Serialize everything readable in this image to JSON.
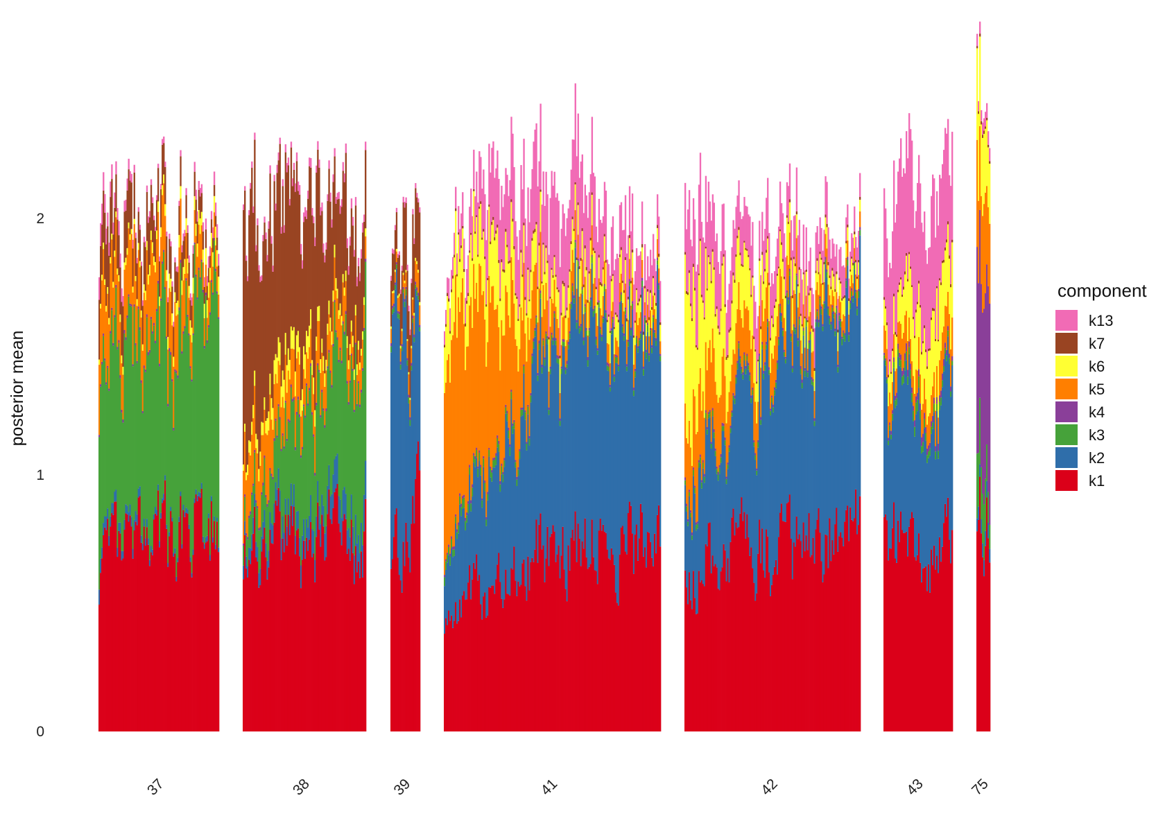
{
  "chart_data": {
    "type": "bar",
    "stacked": true,
    "xlabel": "",
    "ylabel": "posterior mean",
    "ylim": [
      0,
      2.85
    ],
    "yticks": [
      0,
      1,
      2
    ],
    "grid": false,
    "legend_title": "component",
    "legend_position": "right",
    "stack_order": [
      "k1",
      "k2",
      "k3",
      "k4",
      "k5",
      "k6",
      "k7",
      "k13"
    ],
    "legend_entries": [
      {
        "key": "k13",
        "label": "k13",
        "color": "#F16BB5"
      },
      {
        "key": "k7",
        "label": "k7",
        "color": "#994422"
      },
      {
        "key": "k6",
        "label": "k6",
        "color": "#FFFF33"
      },
      {
        "key": "k5",
        "label": "k5",
        "color": "#FF7F00"
      },
      {
        "key": "k4",
        "label": "k4",
        "color": "#8A3F99"
      },
      {
        "key": "k3",
        "label": "k3",
        "color": "#46A23A"
      },
      {
        "key": "k2",
        "label": "k2",
        "color": "#2F6EAA"
      },
      {
        "key": "k1",
        "label": "k1",
        "color": "#DB0019"
      }
    ],
    "groups": [
      {
        "label": "37",
        "bars": 86,
        "profile": {
          "k1": [
            0.62,
            0.72,
            0.78,
            0.83
          ],
          "k2": [
            0.05,
            0.03,
            0.02,
            0.02
          ],
          "k3": [
            0.65,
            0.72,
            0.75,
            0.9
          ],
          "k4": [
            0.01,
            0.01,
            0.01,
            0.01
          ],
          "k5": [
            0.25,
            0.25,
            0.2,
            0.08
          ],
          "k6": [
            0.02,
            0.03,
            0.05,
            0.06
          ],
          "k7": [
            0.25,
            0.17,
            0.1,
            0.04
          ],
          "k13": [
            0.08,
            0.02,
            0.02,
            0.05
          ]
        }
      },
      {
        "label": "38",
        "bars": 88,
        "profile": {
          "k1": [
            0.72,
            0.74,
            0.74,
            0.74
          ],
          "k2": [
            0.05,
            0.08,
            0.1,
            0.12
          ],
          "k3": [
            0.08,
            0.3,
            0.5,
            0.7
          ],
          "k4": [
            0.01,
            0.01,
            0.01,
            0.01
          ],
          "k5": [
            0.25,
            0.2,
            0.15,
            0.1
          ],
          "k6": [
            0.03,
            0.1,
            0.05,
            0.03
          ],
          "k7": [
            0.85,
            0.65,
            0.45,
            0.3
          ],
          "k13": [
            0.02,
            0.03,
            0.03,
            0.03
          ]
        }
      },
      {
        "label": "39",
        "bars": 22,
        "profile": {
          "k1": [
            0.72,
            0.78,
            0.85
          ],
          "k2": [
            1.0,
            0.8,
            0.55
          ],
          "k3": [
            0.02,
            0.02,
            0.02
          ],
          "k4": [
            0.01,
            0.01,
            0.01
          ],
          "k5": [
            0.05,
            0.06,
            0.08
          ],
          "k6": [
            0.01,
            0.01,
            0.01
          ],
          "k7": [
            0.15,
            0.25,
            0.35
          ],
          "k13": [
            0.02,
            0.02,
            0.02
          ]
        }
      },
      {
        "label": "41",
        "bars": 156,
        "profile": {
          "k1": [
            0.4,
            0.62,
            0.72,
            0.72,
            0.75
          ],
          "k2": [
            0.2,
            0.5,
            0.8,
            0.8,
            0.82
          ],
          "k3": [
            0.03,
            0.03,
            0.02,
            0.02,
            0.02
          ],
          "k4": [
            0.01,
            0.01,
            0.01,
            0.01,
            0.01
          ],
          "k5": [
            0.85,
            0.55,
            0.12,
            0.08,
            0.06
          ],
          "k6": [
            0.2,
            0.25,
            0.12,
            0.1,
            0.06
          ],
          "k7": [
            0.01,
            0.01,
            0.01,
            0.01,
            0.01
          ],
          "k13": [
            0.05,
            0.25,
            0.35,
            0.25,
            0.15
          ]
        }
      },
      {
        "label": "42",
        "bars": 128,
        "profile": {
          "k1": [
            0.65,
            0.7,
            0.72,
            0.78
          ],
          "k2": [
            0.3,
            0.6,
            0.75,
            0.85
          ],
          "k3": [
            0.02,
            0.02,
            0.02,
            0.02
          ],
          "k4": [
            0.01,
            0.01,
            0.01,
            0.01
          ],
          "k5": [
            0.3,
            0.2,
            0.1,
            0.06
          ],
          "k6": [
            0.5,
            0.2,
            0.1,
            0.05
          ],
          "k7": [
            0.01,
            0.01,
            0.01,
            0.01
          ],
          "k13": [
            0.3,
            0.2,
            0.15,
            0.1
          ]
        }
      },
      {
        "label": "43",
        "bars": 50,
        "profile": {
          "k1": [
            0.72,
            0.75,
            0.72
          ],
          "k2": [
            0.55,
            0.5,
            0.55
          ],
          "k3": [
            0.02,
            0.04,
            0.02
          ],
          "k4": [
            0.01,
            0.03,
            0.02
          ],
          "k5": [
            0.12,
            0.12,
            0.15
          ],
          "k6": [
            0.1,
            0.25,
            0.25
          ],
          "k7": [
            0.01,
            0.01,
            0.01
          ],
          "k13": [
            0.4,
            0.45,
            0.35
          ]
        }
      },
      {
        "label": "75",
        "bars": 10,
        "profile": {
          "k1": [
            0.9,
            0.9
          ],
          "k2": [
            0.05,
            0.05
          ],
          "k3": [
            0.3,
            0.1
          ],
          "k4": [
            0.7,
            0.8
          ],
          "k5": [
            0.35,
            0.3
          ],
          "k6": [
            0.3,
            0.25
          ],
          "k7": [
            0.01,
            0.01
          ],
          "k13": [
            0.05,
            0.05
          ]
        }
      }
    ]
  }
}
